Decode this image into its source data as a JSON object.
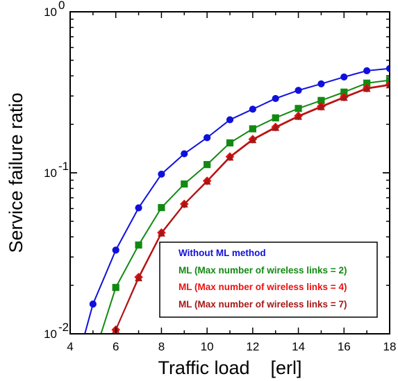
{
  "chart_data": {
    "type": "line",
    "xlabel": "Traffic load    [erl]",
    "ylabel": "Service failure ratio",
    "xlim": [
      4,
      18
    ],
    "ylim": [
      0.01,
      1
    ],
    "yscale": "log",
    "grid": false,
    "legend_position": "bottom-right",
    "x_ticks": [
      {
        "value": 4,
        "label": "4"
      },
      {
        "value": 6,
        "label": "6"
      },
      {
        "value": 8,
        "label": "8"
      },
      {
        "value": 10,
        "label": "10"
      },
      {
        "value": 12,
        "label": "12"
      },
      {
        "value": 14,
        "label": "14"
      },
      {
        "value": 16,
        "label": "16"
      },
      {
        "value": 18,
        "label": "18"
      }
    ],
    "y_ticks": [
      {
        "value": 1,
        "base": "10",
        "exp": "0"
      },
      {
        "value": 0.1,
        "base": "10",
        "exp": "-1"
      },
      {
        "value": 0.01,
        "base": "10",
        "exp": "-2"
      }
    ],
    "series": [
      {
        "name": "Without ML method",
        "color": "#1010dd",
        "marker": "circle",
        "points": [
          [
            4.6,
            0.0095
          ],
          [
            5,
            0.0153
          ],
          [
            6,
            0.0331
          ],
          [
            7,
            0.0606
          ],
          [
            8,
            0.0981
          ],
          [
            9,
            0.1313
          ],
          [
            10,
            0.1653
          ],
          [
            11,
            0.2135
          ],
          [
            12,
            0.2484
          ],
          [
            13,
            0.2894
          ],
          [
            14,
            0.3252
          ],
          [
            15,
            0.3569
          ],
          [
            16,
            0.3937
          ],
          [
            17,
            0.4304
          ],
          [
            18,
            0.4443
          ]
        ]
      },
      {
        "name": "ML (Max number of wireless links = 2)",
        "color": "#128a12",
        "marker": "square",
        "points": [
          [
            5.3,
            0.0095
          ],
          [
            6,
            0.0194
          ],
          [
            7,
            0.0356
          ],
          [
            8,
            0.0608
          ],
          [
            9,
            0.0852
          ],
          [
            10,
            0.1125
          ],
          [
            11,
            0.1534
          ],
          [
            12,
            0.1876
          ],
          [
            13,
            0.2194
          ],
          [
            14,
            0.2509
          ],
          [
            15,
            0.2813
          ],
          [
            16,
            0.317
          ],
          [
            17,
            0.3605
          ],
          [
            18,
            0.3756
          ]
        ]
      },
      {
        "name": "ML (Max number of wireless links = 4)",
        "color": "#ee1010",
        "marker": "diamond",
        "points": [
          [
            6,
            0.0106
          ],
          [
            7,
            0.0225
          ],
          [
            8,
            0.0425
          ],
          [
            9,
            0.064
          ],
          [
            10,
            0.0891
          ],
          [
            11,
            0.126
          ],
          [
            12,
            0.1617
          ],
          [
            13,
            0.1924
          ],
          [
            14,
            0.2256
          ],
          [
            15,
            0.2587
          ],
          [
            16,
            0.2956
          ],
          [
            17,
            0.3358
          ],
          [
            18,
            0.3538
          ]
        ]
      },
      {
        "name": "ML (Max number of wireless links = 7)",
        "color": "#a61818",
        "marker": "triangle",
        "points": [
          [
            6,
            0.0106
          ],
          [
            7,
            0.0222
          ],
          [
            8,
            0.0421
          ],
          [
            9,
            0.0637
          ],
          [
            10,
            0.0884
          ],
          [
            11,
            0.1247
          ],
          [
            12,
            0.16
          ],
          [
            13,
            0.1906
          ],
          [
            14,
            0.2235
          ],
          [
            15,
            0.2563
          ],
          [
            16,
            0.2931
          ],
          [
            17,
            0.3331
          ],
          [
            18,
            0.3506
          ]
        ]
      }
    ]
  }
}
